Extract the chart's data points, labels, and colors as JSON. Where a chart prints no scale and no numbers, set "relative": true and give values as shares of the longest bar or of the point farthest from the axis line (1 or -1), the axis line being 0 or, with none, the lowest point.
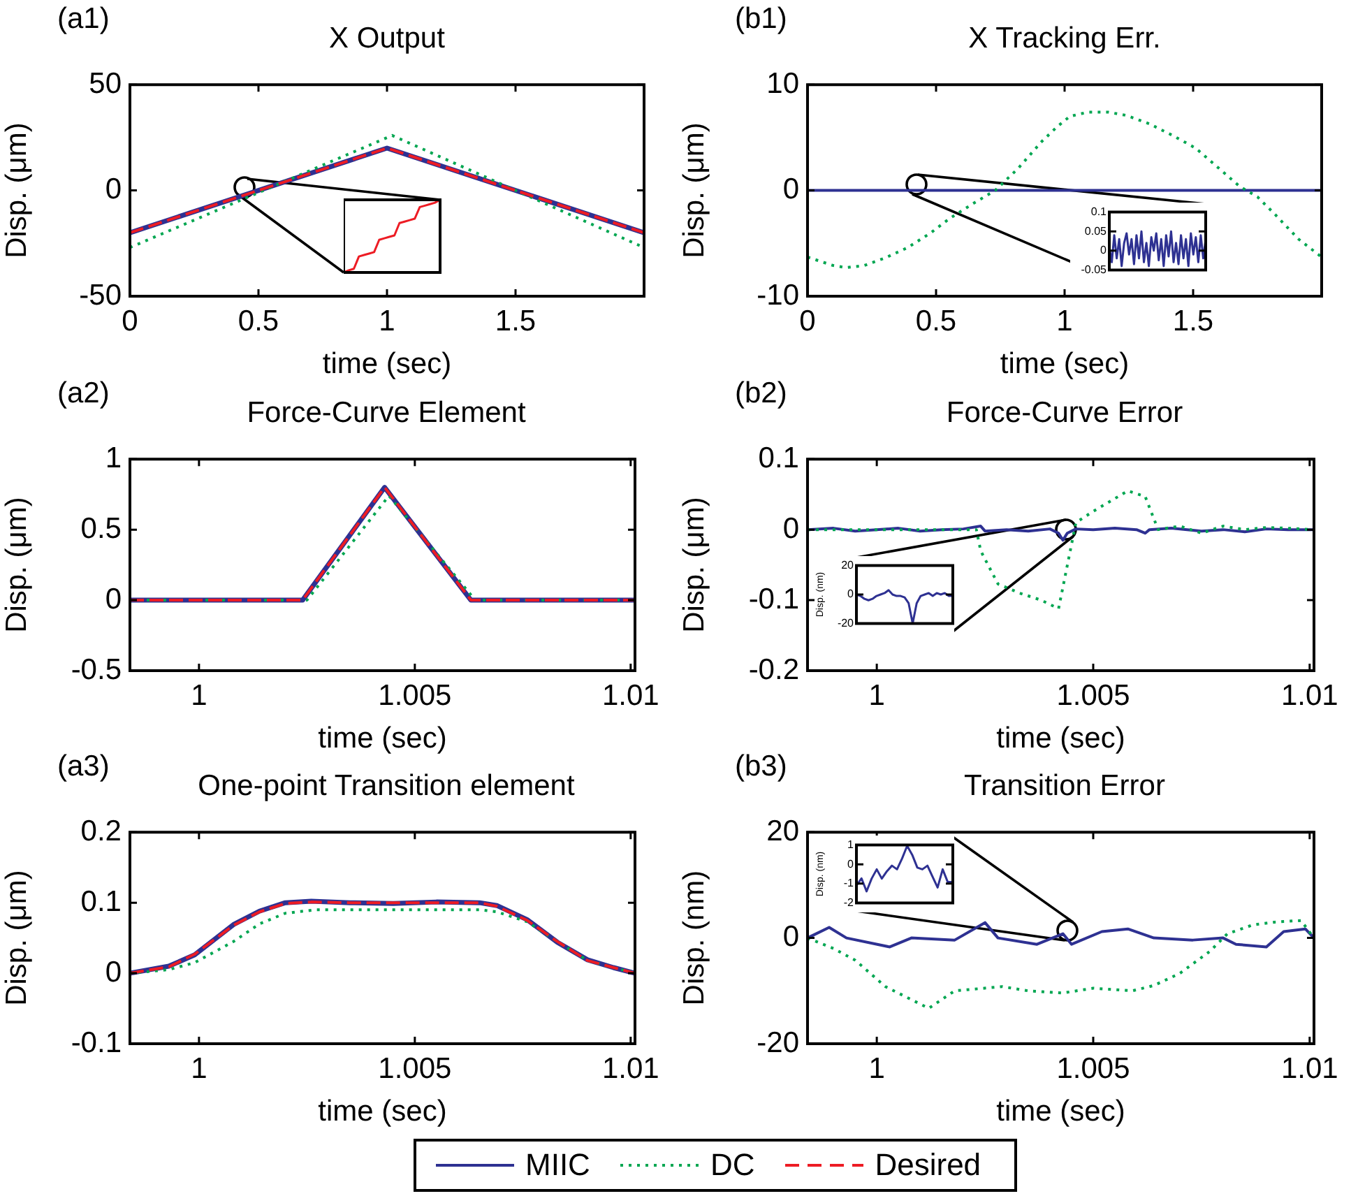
{
  "chart_data": [
    {
      "type": "line",
      "title": "X Output",
      "xlabel": "time (sec)",
      "ylabel": "Disp. (μm)",
      "annotations": [
        "(a1)"
      ],
      "xlim": [
        0,
        2
      ],
      "ylim": [
        -50,
        50
      ],
      "xticks": [
        0,
        0.5,
        1,
        1.5
      ],
      "yticks": [
        -50,
        0,
        50
      ],
      "series": [
        {
          "color": "#2e3192",
          "line_style": "solid",
          "x": [
            0,
            1,
            2
          ],
          "values": [
            -20,
            20,
            -20
          ]
        },
        {
          "color": "#00a651",
          "line_style": "dotted",
          "x": [
            0,
            1.02,
            2
          ],
          "values": [
            -27,
            26,
            -27
          ]
        },
        {
          "color": "#ed1c24",
          "line_style": "dashed",
          "x": [
            0,
            1,
            2
          ],
          "values": [
            -20,
            20,
            -20
          ]
        }
      ]
    },
    {
      "type": "line",
      "relative": true,
      "tick_labels": false,
      "categories": [
        null,
        null,
        null,
        null,
        null,
        null,
        null,
        null,
        null,
        null,
        null,
        null,
        null,
        null,
        null,
        null,
        null,
        null,
        null,
        null
      ],
      "series": [
        {
          "color": "#ed1c24",
          "line_style": "solid",
          "values": [
            0,
            0.03,
            0.05,
            0.22,
            0.24,
            0.26,
            0.28,
            0.45,
            0.47,
            0.49,
            0.51,
            0.68,
            0.7,
            0.72,
            0.74,
            0.9,
            0.92,
            0.94,
            0.96,
            1
          ]
        }
      ]
    },
    {
      "type": "line",
      "title": "X Tracking Err.",
      "xlabel": "time (sec)",
      "ylabel": "Disp. (μm)",
      "annotations": [
        "(b1)"
      ],
      "xlim": [
        0,
        2
      ],
      "ylim": [
        -10,
        10
      ],
      "xticks": [
        0,
        0.5,
        1,
        1.5
      ],
      "yticks": [
        -10,
        0,
        10
      ],
      "series": [
        {
          "color": "#2e3192",
          "line_style": "solid",
          "x": [
            0,
            2
          ],
          "values": [
            0,
            0
          ]
        },
        {
          "color": "#00a651",
          "line_style": "dotted",
          "x": [
            0,
            0.1,
            0.15,
            0.22,
            0.3,
            0.39,
            0.48,
            0.55,
            0.64,
            0.73,
            0.82,
            0.91,
            0.97,
            1.02,
            1.09,
            1.17,
            1.24,
            1.33,
            1.42,
            1.51,
            1.6,
            1.68,
            1.75,
            1.82,
            1.91,
            2
          ],
          "values": [
            -6.3,
            -7.1,
            -7.3,
            -7.1,
            -6.4,
            -5.4,
            -4,
            -2.7,
            -1.3,
            0,
            2.1,
            4.6,
            6,
            7,
            7.4,
            7.4,
            7.1,
            6.3,
            5.2,
            4,
            2.1,
            0.4,
            -0.6,
            -2.3,
            -4.6,
            -6.3
          ]
        }
      ]
    },
    {
      "type": "line",
      "tick_labels": "y",
      "ylim": [
        -0.05,
        0.1
      ],
      "yticks": [
        -0.05,
        0,
        0.05,
        0.1
      ],
      "categories": [
        null,
        null,
        null,
        null,
        null,
        null,
        null,
        null,
        null,
        null,
        null,
        null,
        null,
        null,
        null,
        null,
        null,
        null,
        null,
        null,
        null,
        null,
        null,
        null,
        null,
        null,
        null,
        null,
        null,
        null,
        null,
        null,
        null,
        null,
        null,
        null,
        null,
        null,
        null,
        null
      ],
      "series": [
        {
          "color": "#2e3192",
          "line_style": "solid",
          "values": [
            0.01,
            -0.03,
            0.04,
            -0.02,
            0.03,
            -0.04,
            0.02,
            0.045,
            -0.01,
            0.03,
            -0.035,
            0.04,
            -0.02,
            0.05,
            -0.03,
            0.02,
            -0.04,
            0.035,
            0,
            0.045,
            -0.025,
            0.03,
            -0.04,
            0.04,
            -0.015,
            0.05,
            -0.03,
            0.02,
            -0.035,
            0.04,
            -0.02,
            0.03,
            -0.04,
            0.045,
            -0.01,
            0.035,
            -0.03,
            0.04,
            -0.02,
            0.03
          ]
        }
      ]
    },
    {
      "type": "line",
      "title": "Force-Curve Element",
      "xlabel": "time (sec)",
      "ylabel": "Disp. (μm)",
      "annotations": [
        "(a2)"
      ],
      "xlim": [
        0.9984,
        1.0101
      ],
      "ylim": [
        -0.5,
        1
      ],
      "xticks": [
        1,
        1.005,
        1.01
      ],
      "yticks": [
        -0.5,
        0,
        0.5,
        1
      ],
      "series": [
        {
          "color": "#2e3192",
          "line_style": "solid",
          "x": [
            0.9984,
            1.0024,
            1.0043,
            1.0063,
            1.0101
          ],
          "values": [
            0,
            0,
            0.8,
            0,
            0
          ]
        },
        {
          "color": "#00a651",
          "line_style": "dotted",
          "x": [
            0.9984,
            1.0025,
            1.0044,
            1.0064,
            1.0101
          ],
          "values": [
            0,
            0,
            0.74,
            0,
            0
          ]
        },
        {
          "color": "#ed1c24",
          "line_style": "dashed",
          "x": [
            0.9984,
            1.0024,
            1.0043,
            1.0063,
            1.0101
          ],
          "values": [
            0,
            0,
            0.8,
            0,
            0
          ]
        }
      ]
    },
    {
      "type": "line",
      "title": "Force-Curve Error",
      "xlabel": "time (sec)",
      "ylabel": "Disp. (μm)",
      "annotations": [
        "(b2)"
      ],
      "xlim": [
        0.9984,
        1.0101
      ],
      "ylim": [
        -0.2,
        0.1
      ],
      "xticks": [
        1,
        1.005,
        1.01
      ],
      "yticks": [
        -0.2,
        -0.1,
        0,
        0.1
      ],
      "series": [
        {
          "color": "#2e3192",
          "line_style": "solid",
          "x": [
            0.9984,
            0.999,
            0.9995,
            1,
            1.0005,
            1.001,
            1.0015,
            1.002,
            1.0024,
            1.0025,
            1.003,
            1.0035,
            1.004,
            1.0042,
            1.0043,
            1.0044,
            1.0046,
            1.005,
            1.0055,
            1.006,
            1.0062,
            1.0063,
            1.0068,
            1.0075,
            1.008,
            1.0085,
            1.009,
            1.0095,
            1.0101
          ],
          "values": [
            0,
            0.002,
            -0.002,
            0,
            0.002,
            -0.002,
            0,
            0.001,
            0.005,
            -0.002,
            0,
            -0.002,
            0.001,
            -0.005,
            -0.015,
            -0.005,
            0.001,
            0,
            0.002,
            0,
            -0.005,
            0,
            0.002,
            -0.002,
            0,
            -0.003,
            0.001,
            0,
            0
          ]
        },
        {
          "color": "#00a651",
          "line_style": "dotted",
          "x": [
            0.9984,
            1,
            1.0023,
            1.0024,
            1.0028,
            1.0033,
            1.0038,
            1.0042,
            1.0046,
            1.005,
            1.0058,
            1.0062,
            1.0065,
            1.007,
            1.0075,
            1.008,
            1.0085,
            1.009,
            1.0095,
            1.0101
          ],
          "values": [
            0,
            0,
            0,
            -0.03,
            -0.077,
            -0.09,
            -0.1,
            -0.112,
            0.01,
            0.026,
            0.055,
            0.047,
            0,
            0.005,
            -0.005,
            0.005,
            0,
            0.003,
            0.002,
            0
          ]
        }
      ]
    },
    {
      "type": "line",
      "tick_labels": "y",
      "ylabel": "Disp. (nm)",
      "ylim": [
        -20,
        20
      ],
      "yticks": [
        -20,
        0,
        20
      ],
      "categories": [
        null,
        null,
        null,
        null,
        null,
        null,
        null,
        null,
        null,
        null,
        null,
        null,
        null,
        null,
        null,
        null,
        null,
        null,
        null,
        null,
        null,
        null,
        null,
        null,
        null
      ],
      "series": [
        {
          "color": "#2e3192",
          "line_style": "solid",
          "values": [
            0,
            -1,
            -3,
            -4,
            -3,
            -1,
            0,
            1,
            3,
            0,
            -1,
            -1,
            -2,
            -6,
            -20,
            -6,
            -1,
            0,
            1,
            -1,
            1,
            0,
            1,
            -1,
            -1
          ]
        }
      ]
    },
    {
      "type": "line",
      "title": "One-point Transition element",
      "xlabel": "time (sec)",
      "ylabel": "Disp. (μm)",
      "annotations": [
        "(a3)"
      ],
      "xlim": [
        0.9984,
        1.0101
      ],
      "ylim": [
        -0.1,
        0.2
      ],
      "xticks": [
        1,
        1.005,
        1.01
      ],
      "yticks": [
        -0.1,
        0,
        0.1,
        0.2
      ],
      "legend": "bottom",
      "series": [
        {
          "name": "MIIC",
          "color": "#2e3192",
          "line_style": "solid",
          "x": [
            0.9984,
            0.9993,
            0.9999,
            1.0008,
            1.0014,
            1.002,
            1.0026,
            1.0035,
            1.0045,
            1.0055,
            1.0065,
            1.0069,
            1.0076,
            1.0083,
            1.009,
            1.0096,
            1.0101
          ],
          "values": [
            0,
            0.01,
            0.026,
            0.069,
            0.088,
            0.1,
            0.102,
            0.1,
            0.099,
            0.101,
            0.1,
            0.096,
            0.076,
            0.044,
            0.019,
            0.008,
            0
          ]
        },
        {
          "name": "DC",
          "color": "#00a651",
          "line_style": "dotted",
          "x": [
            0.9984,
            0.9993,
            0.9999,
            1.0008,
            1.0014,
            1.002,
            1.0027,
            1.0035,
            1.0045,
            1.0055,
            1.0065,
            1.0069,
            1.0076,
            1.0083,
            1.009,
            1.0096,
            1.0101
          ],
          "values": [
            0,
            0.005,
            0.015,
            0.045,
            0.07,
            0.085,
            0.09,
            0.09,
            0.09,
            0.09,
            0.09,
            0.087,
            0.073,
            0.045,
            0.018,
            0.008,
            0
          ]
        },
        {
          "name": "Desired",
          "color": "#ed1c24",
          "line_style": "dashed",
          "x": [
            0.9984,
            0.9993,
            0.9999,
            1.0008,
            1.0014,
            1.002,
            1.0026,
            1.0035,
            1.0045,
            1.0055,
            1.0065,
            1.0069,
            1.0076,
            1.0083,
            1.009,
            1.0096,
            1.0101
          ],
          "values": [
            0,
            0.009,
            0.027,
            0.068,
            0.087,
            0.099,
            0.101,
            0.1,
            0.1,
            0.1,
            0.1,
            0.095,
            0.075,
            0.045,
            0.018,
            0.008,
            0
          ]
        }
      ]
    },
    {
      "type": "line",
      "title": "Transition Error",
      "xlabel": "time (sec)",
      "ylabel": "Disp. (nm)",
      "annotations": [
        "(b3)"
      ],
      "xlim": [
        0.9984,
        1.0101
      ],
      "ylim": [
        -20,
        20
      ],
      "xticks": [
        1,
        1.005,
        1.01
      ],
      "yticks": [
        -20,
        0,
        20
      ],
      "series": [
        {
          "color": "#2e3192",
          "line_style": "solid",
          "x": [
            0.9984,
            0.9989,
            0.9993,
            1.0003,
            1.0008,
            1.0018,
            1.0025,
            1.0028,
            1.0037,
            1.0043,
            1.0045,
            1.0052,
            1.0058,
            1.0064,
            1.0073,
            1.008,
            1.0083,
            1.009,
            1.0094,
            1.0099,
            1.0101
          ],
          "values": [
            0,
            2,
            0,
            -1.7,
            0,
            -0.4,
            2.9,
            0,
            -1.2,
            0.8,
            -1.2,
            1.2,
            1.7,
            0,
            -0.4,
            0,
            -1.2,
            -1.7,
            1.2,
            1.7,
            0
          ]
        },
        {
          "color": "#00a651",
          "line_style": "dotted",
          "x": [
            0.9984,
            0.999,
            0.9995,
            1.0002,
            1.0012,
            1.0018,
            1.0029,
            1.0035,
            1.0043,
            1.005,
            1.0059,
            1.0064,
            1.007,
            1.0077,
            1.0081,
            1.0087,
            1.0092,
            1.0098,
            1.0101
          ],
          "values": [
            0,
            -2,
            -4.2,
            -9.2,
            -13.3,
            -10,
            -9.2,
            -10,
            -10.4,
            -9.5,
            -10,
            -9,
            -6.7,
            -2.5,
            0.8,
            2.5,
            3,
            3.3,
            0
          ]
        }
      ]
    },
    {
      "type": "line",
      "tick_labels": "y",
      "ylabel": "Disp. (nm)",
      "ylim": [
        -2,
        1
      ],
      "yticks": [
        -2,
        -1,
        0,
        1
      ],
      "categories": [
        null,
        null,
        null,
        null,
        null,
        null,
        null,
        null,
        null,
        null,
        null,
        null,
        null,
        null,
        null,
        null,
        null,
        null,
        null,
        null
      ],
      "series": [
        {
          "color": "#2e3192",
          "line_style": "solid",
          "values": [
            -1.1,
            -0.73,
            -1.4,
            -0.74,
            -0.26,
            -0.74,
            -0.36,
            -0.07,
            -0.26,
            0.3,
            0.96,
            0.49,
            -0.17,
            -0.26,
            -0.07,
            -0.64,
            -1.2,
            -0.26,
            -0.92,
            -0.92
          ]
        }
      ]
    }
  ]
}
